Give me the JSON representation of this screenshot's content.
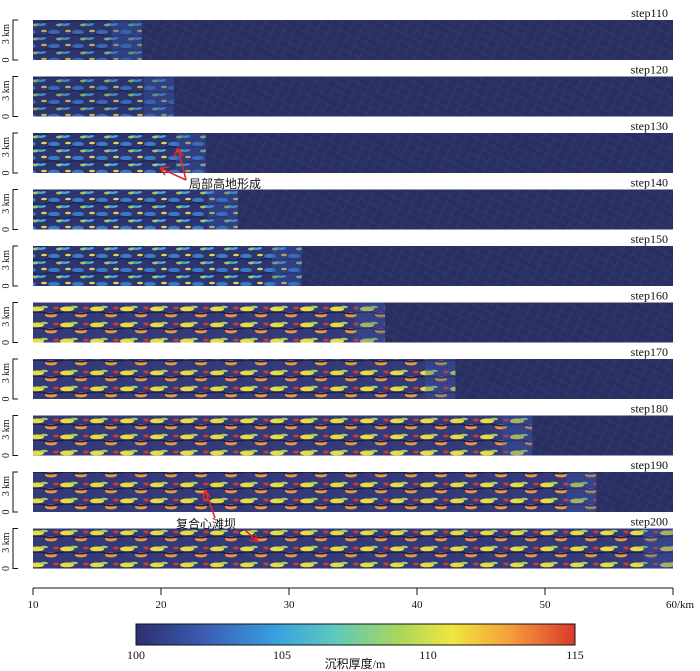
{
  "panels": [
    {
      "step": "step110",
      "front": 0.17
    },
    {
      "step": "step120",
      "front": 0.22
    },
    {
      "step": "step130",
      "front": 0.27
    },
    {
      "step": "step140",
      "front": 0.32
    },
    {
      "step": "step150",
      "front": 0.42
    },
    {
      "step": "step160",
      "front": 0.55
    },
    {
      "step": "step170",
      "front": 0.66
    },
    {
      "step": "step180",
      "front": 0.78
    },
    {
      "step": "step190",
      "front": 0.88
    },
    {
      "step": "step200",
      "front": 1.0
    }
  ],
  "y_axis": {
    "top_label": "3 km",
    "bottom_label": "0"
  },
  "x_axis": {
    "ticks": [
      "10",
      "20",
      "30",
      "40",
      "50",
      "60/km"
    ]
  },
  "annotations": {
    "local_highland": "局部高地形成",
    "composite_bar": "复合心滩坝"
  },
  "colorbar": {
    "ticks": [
      "100",
      "105",
      "110",
      "115"
    ],
    "title": "沉积厚度/m",
    "colors": [
      "#2b2f6d",
      "#3b5bb0",
      "#3aa0de",
      "#5cc9c0",
      "#a9d65a",
      "#f0e640",
      "#f4a03a",
      "#d93a2d"
    ]
  }
}
